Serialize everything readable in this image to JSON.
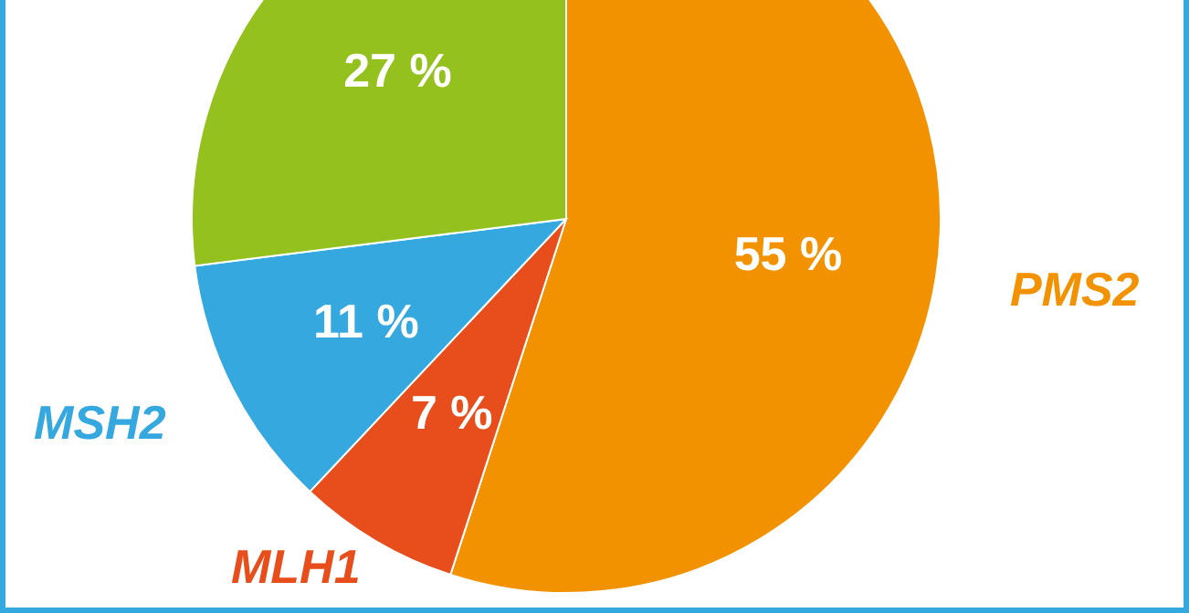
{
  "chart_data": {
    "type": "pie",
    "categories": [
      "PMS2",
      "MLH1",
      "MSH2",
      null
    ],
    "values": [
      55,
      7,
      11,
      27
    ],
    "colors": [
      "#f39200",
      "#e84e1b",
      "#35a8e0",
      "#95c11f"
    ],
    "value_labels": [
      "55 %",
      "7 %",
      "11 %",
      "27 %"
    ],
    "legend": false
  }
}
